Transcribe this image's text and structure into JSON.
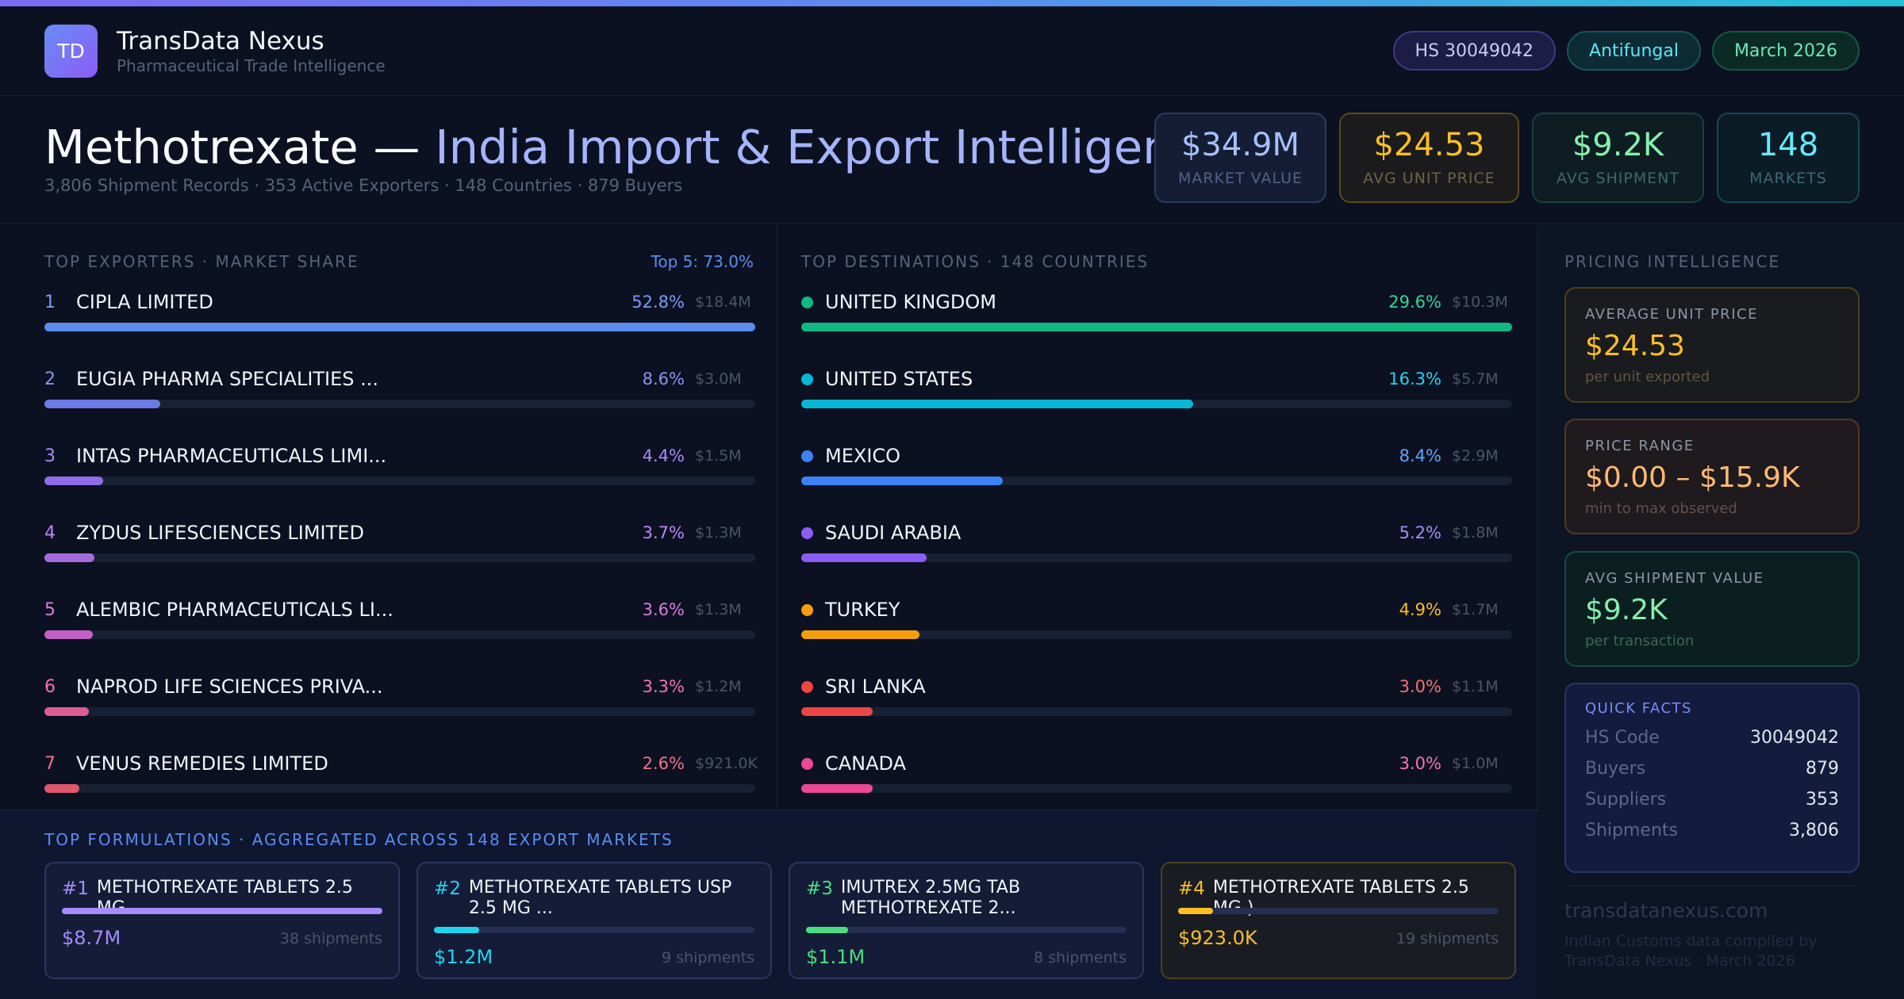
{
  "colors": {
    "accent_gradient": [
      "#7c6cf2",
      "#5b8def",
      "#22c1d6"
    ],
    "background": "#0b1120"
  },
  "brand": {
    "logo_text": "TD",
    "name": "TransData Nexus",
    "tagline": "Pharmaceutical Trade Intelligence"
  },
  "pills": {
    "hs": "HS 30049042",
    "category": "Antifungal",
    "period": "March 2026"
  },
  "hero": {
    "title_product": "Methotrexate —",
    "title_rest": " India Import & Export Intelligence",
    "subtitle": "3,806 Shipment Records · 353 Active Exporters · 148 Countries · 879 Buyers"
  },
  "stats": [
    {
      "value": "$34.9M",
      "label": "MARKET VALUE"
    },
    {
      "value": "$24.53",
      "label": "AVG UNIT PRICE"
    },
    {
      "value": "$9.2K",
      "label": "AVG SHIPMENT"
    },
    {
      "value": "148",
      "label": "MARKETS"
    }
  ],
  "exporters": {
    "label": "TOP EXPORTERS · MARKET SHARE",
    "top5": "Top 5: 73.0%",
    "items": [
      {
        "rank": "1",
        "name": "CIPLA LIMITED",
        "pct": "52.8%",
        "amount": "$18.4M",
        "share": 1.0,
        "color": "#5b8def",
        "pct_color": "#7c9cf5"
      },
      {
        "rank": "2",
        "name": "EUGIA PHARMA SPECIALITIES ...",
        "pct": "8.6%",
        "amount": "$3.0M",
        "share": 0.163,
        "color": "#6d79e6",
        "pct_color": "#8b93ef"
      },
      {
        "rank": "3",
        "name": "INTAS PHARMACEUTICALS LIMI...",
        "pct": "4.4%",
        "amount": "$1.5M",
        "share": 0.083,
        "color": "#8f6ce8",
        "pct_color": "#a78bfa"
      },
      {
        "rank": "4",
        "name": "ZYDUS LIFESCIENCES LIMITED",
        "pct": "3.7%",
        "amount": "$1.3M",
        "share": 0.07,
        "color": "#a56bdc",
        "pct_color": "#c084fc"
      },
      {
        "rank": "5",
        "name": "ALEMBIC PHARMACEUTICALS LI...",
        "pct": "3.6%",
        "amount": "$1.3M",
        "share": 0.068,
        "color": "#c45fc8",
        "pct_color": "#d97ae0"
      },
      {
        "rank": "6",
        "name": "NAPROD LIFE SCIENCES PRIVA...",
        "pct": "3.3%",
        "amount": "$1.2M",
        "share": 0.063,
        "color": "#dc5c93",
        "pct_color": "#f472b6"
      },
      {
        "rank": "7",
        "name": "VENUS REMEDIES LIMITED",
        "pct": "2.6%",
        "amount": "$921.0K",
        "share": 0.049,
        "color": "#e0566c",
        "pct_color": "#f0728a"
      }
    ]
  },
  "destinations": {
    "label": "TOP DESTINATIONS · 148 COUNTRIES",
    "items": [
      {
        "name": "UNITED KINGDOM",
        "pct": "29.6%",
        "amount": "$10.3M",
        "share": 1.0,
        "color": "#10b981",
        "pct_color": "#34d399"
      },
      {
        "name": "UNITED STATES",
        "pct": "16.3%",
        "amount": "$5.7M",
        "share": 0.551,
        "color": "#06b6d4",
        "pct_color": "#22d3ee"
      },
      {
        "name": "MEXICO",
        "pct": "8.4%",
        "amount": "$2.9M",
        "share": 0.284,
        "color": "#3b82f6",
        "pct_color": "#60a5fa"
      },
      {
        "name": "SAUDI ARABIA",
        "pct": "5.2%",
        "amount": "$1.8M",
        "share": 0.176,
        "color": "#8b5cf6",
        "pct_color": "#a78bfa"
      },
      {
        "name": "TURKEY",
        "pct": "4.9%",
        "amount": "$1.7M",
        "share": 0.166,
        "color": "#f59e0b",
        "pct_color": "#fbbf24"
      },
      {
        "name": "SRI LANKA",
        "pct": "3.0%",
        "amount": "$1.1M",
        "share": 0.101,
        "color": "#ef4444",
        "pct_color": "#f87171"
      },
      {
        "name": "CANADA",
        "pct": "3.0%",
        "amount": "$1.0M",
        "share": 0.1,
        "color": "#ec4899",
        "pct_color": "#f472b6"
      }
    ]
  },
  "formulations": {
    "label": "TOP FORMULATIONS · AGGREGATED ACROSS 148 EXPORT MARKETS",
    "items": [
      {
        "num": "#1",
        "name": "METHOTREXATE TABLETS 2.5 MG",
        "value": "$8.7M",
        "shipments": "38 shipments",
        "share": 1.0,
        "color": "#a78bfa",
        "two_line": false
      },
      {
        "num": "#2",
        "name": "METHOTREXATE TABLETS USP 2.5 MG ...",
        "value": "$1.2M",
        "shipments": "9 shipments",
        "share": 0.14,
        "color": "#22d3ee",
        "two_line": true
      },
      {
        "num": "#3",
        "name": "IMUTREX 2.5MG TAB METHOTREXATE 2...",
        "value": "$1.1M",
        "shipments": "8 shipments",
        "share": 0.13,
        "color": "#4ade80",
        "two_line": true
      },
      {
        "num": "#4",
        "name": "METHOTREXATE TABLETS 2.5 MG )",
        "value": "$923.0K",
        "shipments": "19 shipments",
        "share": 0.11,
        "color": "#fbbf24",
        "two_line": false
      }
    ]
  },
  "pricing": {
    "label": "PRICING INTELLIGENCE",
    "cards": [
      {
        "label": "AVERAGE UNIT PRICE",
        "value": "$24.53",
        "sub": "per unit exported"
      },
      {
        "label": "PRICE RANGE",
        "value": "$0.00 – $15.9K",
        "sub": "min to max observed"
      },
      {
        "label": "AVG SHIPMENT VALUE",
        "value": "$9.2K",
        "sub": "per transaction"
      }
    ],
    "quick_facts": {
      "title": "QUICK FACTS",
      "rows": [
        {
          "key": "HS Code",
          "value": "30049042"
        },
        {
          "key": "Buyers",
          "value": "879"
        },
        {
          "key": "Suppliers",
          "value": "353"
        },
        {
          "key": "Shipments",
          "value": "3,806"
        }
      ]
    },
    "site": "transdatanexus.com",
    "credits": "Indian Customs data compiled by TransData Nexus · March 2026"
  }
}
